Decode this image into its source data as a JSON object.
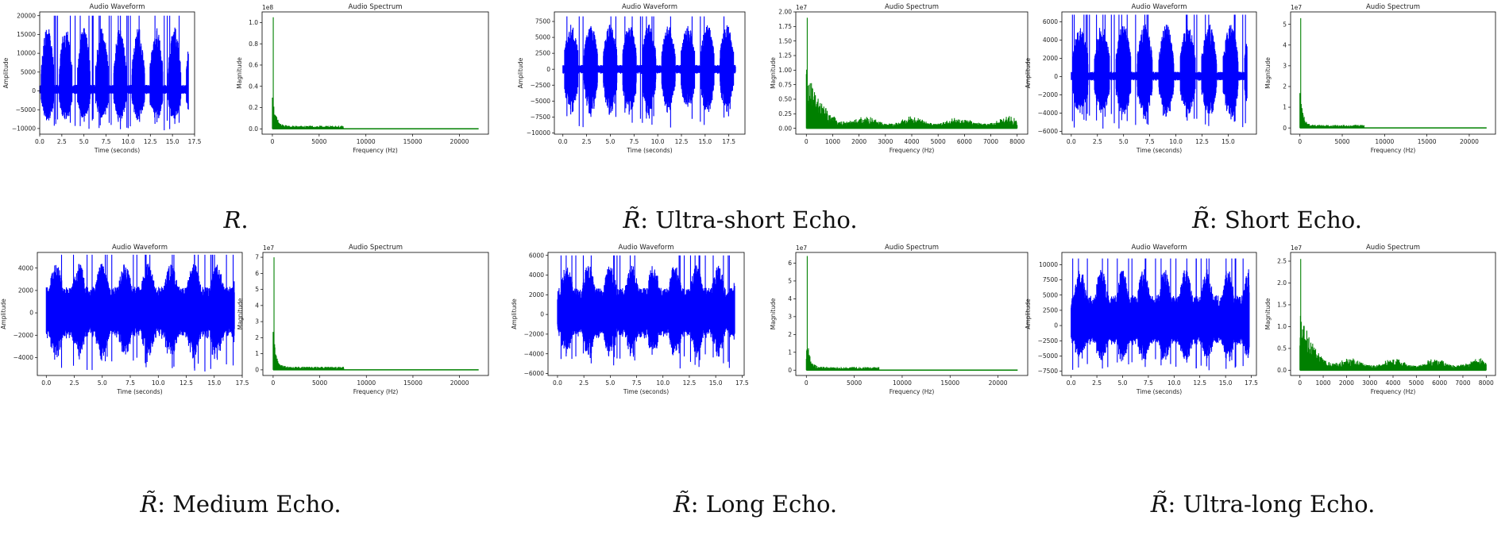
{
  "panels": [
    {
      "caption_symbol": "R",
      "caption_text": "."
    },
    {
      "caption_symbol": "R̃",
      "caption_text": ": Ultra-short Echo."
    },
    {
      "caption_symbol": "R̃",
      "caption_text": ": Short Echo."
    },
    {
      "caption_symbol": "R̃",
      "caption_text": ": Medium Echo."
    },
    {
      "caption_symbol": "R̃",
      "caption_text": ": Long Echo."
    },
    {
      "caption_symbol": "R̃",
      "caption_text": ": Ultra-long Echo."
    }
  ],
  "chart_data": [
    {
      "type": "line",
      "title": "Audio Waveform",
      "xlabel": "Time (seconds)",
      "ylabel": "Amplitude",
      "xlim": [
        0,
        17.5
      ],
      "ylim": [
        -11500,
        21000
      ],
      "duration": 16.8,
      "amp_peak": 20000,
      "amp_trough": -10500,
      "xticks": [
        0.0,
        2.5,
        5.0,
        7.5,
        10.0,
        12.5,
        15.0,
        17.5
      ],
      "xticklabels": [
        "0.0",
        "2.5",
        "5.0",
        "7.5",
        "10.0",
        "12.5",
        "15.0",
        "17.5"
      ],
      "yticks": [
        -10000,
        -5000,
        0,
        5000,
        10000,
        15000,
        20000
      ],
      "yticklabels": [
        "−10000",
        "−5000",
        "0",
        "5000",
        "10000",
        "15000",
        "20000"
      ],
      "color": "#0000ff"
    },
    {
      "type": "line",
      "title": "Audio Spectrum",
      "xlabel": "Frequency (Hz)",
      "ylabel": "Magnitude",
      "offset_text": "1e8",
      "xlim": [
        -1100,
        23100
      ],
      "ylim": [
        -0.05,
        1.1
      ],
      "fmax": 22050,
      "peak": 1.05,
      "xticks": [
        0,
        5000,
        10000,
        15000,
        20000
      ],
      "xticklabels": [
        "0",
        "5000",
        "10000",
        "15000",
        "20000"
      ],
      "yticks": [
        0.0,
        0.2,
        0.4,
        0.6,
        0.8,
        1.0
      ],
      "yticklabels": [
        "0.0",
        "0.2",
        "0.4",
        "0.6",
        "0.8",
        "1.0"
      ],
      "color": "#008000"
    },
    {
      "type": "line",
      "title": "Audio Waveform",
      "xlabel": "Time (seconds)",
      "ylabel": "Amplitude",
      "xlim": [
        -0.9,
        19.2
      ],
      "ylim": [
        -10200,
        9000
      ],
      "duration": 18.2,
      "amp_peak": 8300,
      "amp_trough": -9500,
      "xticks": [
        0.0,
        2.5,
        5.0,
        7.5,
        10.0,
        12.5,
        15.0,
        17.5
      ],
      "xticklabels": [
        "0.0",
        "2.5",
        "5.0",
        "7.5",
        "10.0",
        "12.5",
        "15.0",
        "17.5"
      ],
      "yticks": [
        -10000,
        -7500,
        -5000,
        -2500,
        0,
        2500,
        5000,
        7500
      ],
      "yticklabels": [
        "−10000",
        "−7500",
        "−5000",
        "−2500",
        "0",
        "2500",
        "5000",
        "7500"
      ],
      "color": "#0000ff"
    },
    {
      "type": "line",
      "title": "Audio Spectrum",
      "xlabel": "Frequency (Hz)",
      "ylabel": "Magnitude",
      "offset_text": "1e7",
      "xlim": [
        -400,
        8400
      ],
      "ylim": [
        -0.1,
        2.0
      ],
      "fmax": 8000,
      "peak": 1.9,
      "xticks": [
        0,
        1000,
        2000,
        3000,
        4000,
        5000,
        6000,
        7000,
        8000
      ],
      "xticklabels": [
        "0",
        "1000",
        "2000",
        "3000",
        "4000",
        "5000",
        "6000",
        "7000",
        "8000"
      ],
      "yticks": [
        0.0,
        0.25,
        0.5,
        0.75,
        1.0,
        1.25,
        1.5,
        1.75,
        2.0
      ],
      "yticklabels": [
        "0.00",
        "0.25",
        "0.50",
        "0.75",
        "1.00",
        "1.25",
        "1.50",
        "1.75",
        "2.00"
      ],
      "color": "#008000"
    },
    {
      "type": "line",
      "title": "Audio Waveform",
      "xlabel": "Time (seconds)",
      "ylabel": "Amplitude",
      "xlim": [
        -0.9,
        17.7
      ],
      "ylim": [
        -6300,
        7100
      ],
      "duration": 16.8,
      "amp_peak": 6800,
      "amp_trough": -5800,
      "xticks": [
        0.0,
        2.5,
        5.0,
        7.5,
        10.0,
        12.5,
        15.0
      ],
      "xticklabels": [
        "0.0",
        "2.5",
        "5.0",
        "7.5",
        "10.0",
        "12.5",
        "15.0"
      ],
      "yticks": [
        -6000,
        -4000,
        -2000,
        0,
        2000,
        4000,
        6000
      ],
      "yticklabels": [
        "−6000",
        "−4000",
        "−2000",
        "0",
        "2000",
        "4000",
        "6000"
      ],
      "color": "#0000ff"
    },
    {
      "type": "line",
      "title": "Audio Spectrum",
      "xlabel": "Frequency (Hz)",
      "ylabel": "Magnitude",
      "offset_text": "1e7",
      "xlim": [
        -1100,
        23100
      ],
      "ylim": [
        -0.3,
        5.6
      ],
      "fmax": 22050,
      "peak": 5.3,
      "xticks": [
        0,
        5000,
        10000,
        15000,
        20000
      ],
      "xticklabels": [
        "0",
        "5000",
        "10000",
        "15000",
        "20000"
      ],
      "yticks": [
        0,
        1,
        2,
        3,
        4,
        5
      ],
      "yticklabels": [
        "0",
        "1",
        "2",
        "3",
        "4",
        "5"
      ],
      "color": "#008000"
    },
    {
      "type": "line",
      "title": "Audio Waveform",
      "xlabel": "Time (seconds)",
      "ylabel": "Amplitude",
      "xlim": [
        -0.8,
        17.5
      ],
      "ylim": [
        -5600,
        5400
      ],
      "duration": 16.8,
      "amp_peak": 5200,
      "amp_trough": -5300,
      "xticks": [
        0.0,
        2.5,
        5.0,
        7.5,
        10.0,
        12.5,
        15.0,
        17.5
      ],
      "xticklabels": [
        "0.0",
        "2.5",
        "5.0",
        "7.5",
        "10.0",
        "12.5",
        "15.0",
        "17.5"
      ],
      "yticks": [
        -4000,
        -2000,
        0,
        2000,
        4000
      ],
      "yticklabels": [
        "−4000",
        "−2000",
        "0",
        "2000",
        "4000"
      ],
      "color": "#0000ff"
    },
    {
      "type": "line",
      "title": "Audio Spectrum",
      "xlabel": "Frequency (Hz)",
      "ylabel": "Magnitude",
      "offset_text": "1e7",
      "xlim": [
        -1100,
        23100
      ],
      "ylim": [
        -0.35,
        7.3
      ],
      "fmax": 22050,
      "peak": 7.0,
      "xticks": [
        0,
        5000,
        10000,
        15000,
        20000
      ],
      "xticklabels": [
        "0",
        "5000",
        "10000",
        "15000",
        "20000"
      ],
      "yticks": [
        0,
        1,
        2,
        3,
        4,
        5,
        6,
        7
      ],
      "yticklabels": [
        "0",
        "1",
        "2",
        "3",
        "4",
        "5",
        "6",
        "7"
      ],
      "color": "#008000"
    },
    {
      "type": "line",
      "title": "Audio Waveform",
      "xlabel": "Time (seconds)",
      "ylabel": "Amplitude",
      "xlim": [
        -0.9,
        17.7
      ],
      "ylim": [
        -6200,
        6300
      ],
      "duration": 16.8,
      "amp_peak": 6000,
      "amp_trough": -5500,
      "xticks": [
        0.0,
        2.5,
        5.0,
        7.5,
        10.0,
        12.5,
        15.0,
        17.5
      ],
      "xticklabels": [
        "0.0",
        "2.5",
        "5.0",
        "7.5",
        "10.0",
        "12.5",
        "15.0",
        "17.5"
      ],
      "yticks": [
        -6000,
        -4000,
        -2000,
        0,
        2000,
        4000,
        6000
      ],
      "yticklabels": [
        "−6000",
        "−4000",
        "−2000",
        "0",
        "2000",
        "4000",
        "6000"
      ],
      "color": "#0000ff"
    },
    {
      "type": "line",
      "title": "Audio Spectrum",
      "xlabel": "Frequency (Hz)",
      "ylabel": "Magnitude",
      "offset_text": "1e7",
      "xlim": [
        -1100,
        23100
      ],
      "ylim": [
        -0.3,
        6.6
      ],
      "fmax": 22050,
      "peak": 6.4,
      "xticks": [
        0,
        5000,
        10000,
        15000,
        20000
      ],
      "xticklabels": [
        "0",
        "5000",
        "10000",
        "15000",
        "20000"
      ],
      "yticks": [
        0,
        1,
        2,
        3,
        4,
        5,
        6
      ],
      "yticklabels": [
        "0",
        "1",
        "2",
        "3",
        "4",
        "5",
        "6"
      ],
      "color": "#008000"
    },
    {
      "type": "line",
      "title": "Audio Waveform",
      "xlabel": "Time (seconds)",
      "ylabel": "Amplitude",
      "xlim": [
        -0.9,
        18.0
      ],
      "ylim": [
        -8200,
        12000
      ],
      "duration": 17.3,
      "amp_peak": 11000,
      "amp_trough": -7500,
      "xticks": [
        0.0,
        2.5,
        5.0,
        7.5,
        10.0,
        12.5,
        15.0,
        17.5
      ],
      "xticklabels": [
        "0.0",
        "2.5",
        "5.0",
        "7.5",
        "10.0",
        "12.5",
        "15.0",
        "17.5"
      ],
      "yticks": [
        -7500,
        -5000,
        -2500,
        0,
        2500,
        5000,
        7500,
        10000
      ],
      "yticklabels": [
        "−7500",
        "−5000",
        "−2500",
        "0",
        "2500",
        "5000",
        "7500",
        "10000"
      ],
      "color": "#0000ff"
    },
    {
      "type": "line",
      "title": "Audio Spectrum",
      "xlabel": "Frequency (Hz)",
      "ylabel": "Magnitude",
      "offset_text": "1e7",
      "xlim": [
        -400,
        8400
      ],
      "ylim": [
        -0.12,
        2.7
      ],
      "fmax": 8000,
      "peak": 2.55,
      "xticks": [
        0,
        1000,
        2000,
        3000,
        4000,
        5000,
        6000,
        7000,
        8000
      ],
      "xticklabels": [
        "0",
        "1000",
        "2000",
        "3000",
        "4000",
        "5000",
        "6000",
        "7000",
        "8000"
      ],
      "yticks": [
        0.0,
        0.5,
        1.0,
        1.5,
        2.0,
        2.5
      ],
      "yticklabels": [
        "0.0",
        "0.5",
        "1.0",
        "1.5",
        "2.0",
        "2.5"
      ],
      "color": "#008000"
    }
  ]
}
